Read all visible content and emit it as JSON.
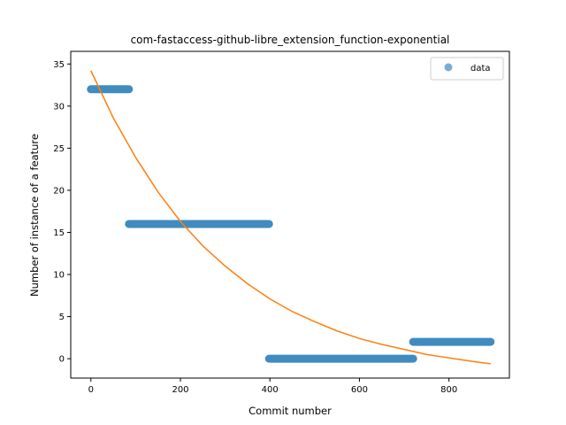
{
  "chart_data": {
    "type": "scatter",
    "title": "com-fastaccess-github-libre_extension_function-exponential",
    "xlabel": "Commit number",
    "ylabel": "Number of instance of a feature",
    "xlim": [
      -45,
      935
    ],
    "ylim": [
      -2.3,
      36.5
    ],
    "xticks": [
      0,
      200,
      400,
      600,
      800
    ],
    "yticks": [
      0,
      5,
      10,
      15,
      20,
      25,
      30,
      35
    ],
    "grid": false,
    "legend_position": "top-right",
    "series": [
      {
        "name": "data",
        "kind": "points",
        "color": "#1f77b4",
        "alpha": 0.6,
        "segments": [
          {
            "x_start": 0,
            "x_end": 85,
            "y": 32
          },
          {
            "x_start": 85,
            "x_end": 398,
            "y": 16
          },
          {
            "x_start": 398,
            "x_end": 720,
            "y": 0
          },
          {
            "x_start": 720,
            "x_end": 893,
            "y": 2
          }
        ]
      },
      {
        "kind": "line",
        "color": "#ff7f0e",
        "x": [
          0,
          50,
          100,
          150,
          200,
          250,
          300,
          350,
          400,
          450,
          500,
          550,
          600,
          650,
          700,
          750,
          800,
          850,
          893
        ],
        "y": [
          34.2,
          28.6,
          23.9,
          19.8,
          16.3,
          13.4,
          11.0,
          8.9,
          7.1,
          5.6,
          4.4,
          3.3,
          2.4,
          1.7,
          1.1,
          0.5,
          0.1,
          -0.3,
          -0.6
        ]
      }
    ]
  }
}
